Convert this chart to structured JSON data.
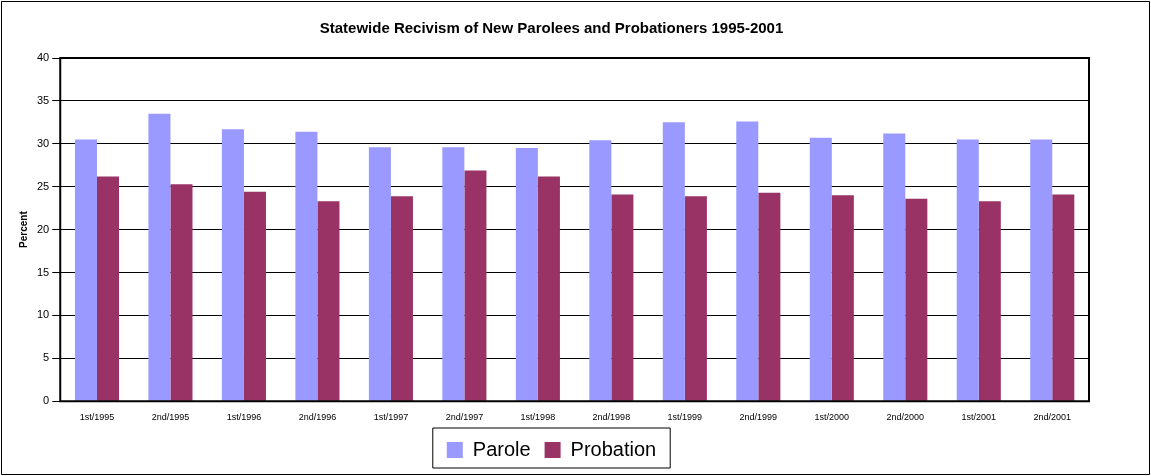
{
  "chart_data": {
    "type": "bar",
    "title": "Statewide Recivism of New Parolees and Probationers 1995-2001",
    "ylabel": "Percent",
    "categories": [
      "1st/1995",
      "2nd/1995",
      "1st/1996",
      "2nd/1996",
      "1st/1997",
      "2nd/1997",
      "1st/1998",
      "2nd/1998",
      "1st/1999",
      "2nd/1999",
      "1st/2000",
      "2nd/2000",
      "1st/2001",
      "2nd/2001"
    ],
    "series": [
      {
        "name": "Parole",
        "color": "#9999ff",
        "values": [
          30.5,
          33.5,
          31.7,
          31.4,
          29.6,
          29.6,
          29.5,
          30.4,
          32.5,
          32.6,
          30.7,
          31.2,
          30.5,
          30.5
        ]
      },
      {
        "name": "Probation",
        "color": "#993366",
        "values": [
          26.2,
          25.3,
          24.4,
          23.3,
          23.9,
          26.9,
          26.2,
          24.1,
          23.9,
          24.3,
          24.0,
          23.6,
          23.3,
          24.1
        ]
      }
    ],
    "ylim": [
      0,
      40
    ],
    "yticks": [
      0,
      5,
      10,
      15,
      20,
      25,
      30,
      35,
      40
    ],
    "grid": "y",
    "legend": "bottom"
  }
}
